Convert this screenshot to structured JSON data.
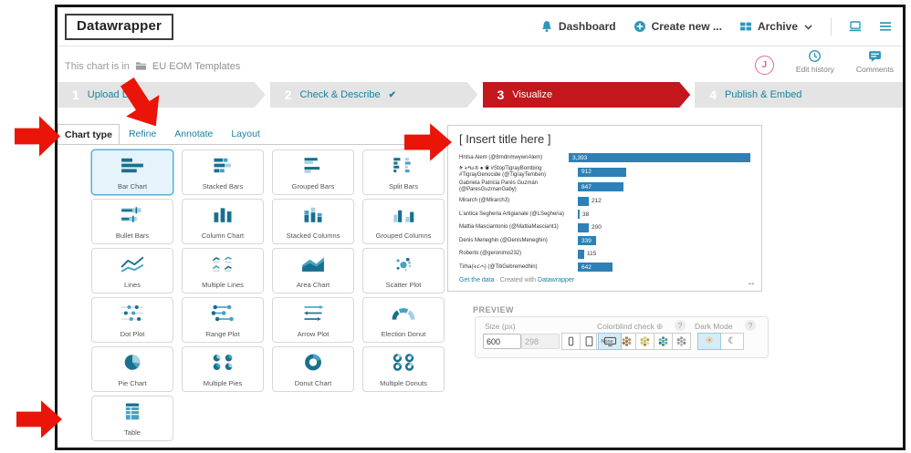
{
  "topbar": {
    "logo": "Datawrapper",
    "nav": [
      {
        "label": "Dashboard",
        "icon": "bell-icon"
      },
      {
        "label": "Create new ...",
        "icon": "plus-circle-icon"
      },
      {
        "label": "Archive",
        "icon": "archive-grid-icon"
      }
    ]
  },
  "context": {
    "prefix": "This chart is in",
    "folder": "EU EOM Templates",
    "avatar_initial": "J",
    "actions": [
      {
        "label": "Edit history",
        "icon": "clock-icon"
      },
      {
        "label": "Comments",
        "icon": "comment-icon"
      }
    ]
  },
  "steps": [
    {
      "number": "1",
      "label": "Upload Data",
      "active": false,
      "check": false
    },
    {
      "number": "2",
      "label": "Check & Describe",
      "active": false,
      "check": true
    },
    {
      "number": "3",
      "label": "Visualize",
      "active": true,
      "check": false
    },
    {
      "number": "4",
      "label": "Publish & Embed",
      "active": false,
      "check": false
    }
  ],
  "tabs": [
    {
      "label": "Chart type",
      "slug": "chart-type",
      "active": true
    },
    {
      "label": "Refine",
      "slug": "refine",
      "active": false
    },
    {
      "label": "Annotate",
      "slug": "annotate",
      "active": false
    },
    {
      "label": "Layout",
      "slug": "layout",
      "active": false
    }
  ],
  "chart_types": [
    {
      "label": "Bar Chart",
      "icon": "bar-chart",
      "selected": true
    },
    {
      "label": "Stacked Bars",
      "icon": "stacked-bars",
      "selected": false
    },
    {
      "label": "Grouped Bars",
      "icon": "grouped-bars",
      "selected": false
    },
    {
      "label": "Split Bars",
      "icon": "split-bars",
      "selected": false
    },
    {
      "label": "Bullet Bars",
      "icon": "bullet-bars",
      "selected": false
    },
    {
      "label": "Column Chart",
      "icon": "column-chart",
      "selected": false
    },
    {
      "label": "Stacked Columns",
      "icon": "stacked-columns",
      "selected": false
    },
    {
      "label": "Grouped Columns",
      "icon": "grouped-columns",
      "selected": false
    },
    {
      "label": "Lines",
      "icon": "lines",
      "selected": false
    },
    {
      "label": "Multiple Lines",
      "icon": "multiple-lines",
      "selected": false
    },
    {
      "label": "Area Chart",
      "icon": "area-chart",
      "selected": false
    },
    {
      "label": "Scatter Plot",
      "icon": "scatter-plot",
      "selected": false
    },
    {
      "label": "Dot Plot",
      "icon": "dot-plot",
      "selected": false
    },
    {
      "label": "Range Plot",
      "icon": "range-plot",
      "selected": false
    },
    {
      "label": "Arrow Plot",
      "icon": "arrow-plot",
      "selected": false
    },
    {
      "label": "Election Donut",
      "icon": "election-donut",
      "selected": false
    },
    {
      "label": "Pie Chart",
      "icon": "pie-chart",
      "selected": false
    },
    {
      "label": "Multiple Pies",
      "icon": "multiple-pies",
      "selected": false
    },
    {
      "label": "Donut Chart",
      "icon": "donut-chart",
      "selected": false
    },
    {
      "label": "Multiple Donuts",
      "icon": "multiple-donuts",
      "selected": false
    },
    {
      "label": "Table",
      "icon": "table",
      "selected": false
    }
  ],
  "chart_data": {
    "type": "bar",
    "title": "[ Insert title here ]",
    "categories": [
      "Hntsa Alem (@8mdnmwywnAlem)",
      "ቅ ትግራይ ● ◉ #StopTigrayBombing #TigrayGenocide (@TigrayTemben)",
      "Gabriela Patricia Parés Guzmán (@ParesGuzmanGaby)",
      "Mirarch (@Mirarch3)",
      "L'antica Segheria Artigianale (@LSegheria)",
      "Mattia Masciantonio (@MattiaMasciant1)",
      "Denis Meneghin (@DenisMeneghin)",
      "Roberto (@geronimo232)",
      "Tirha(ትርሓ) (@TitiGebremedhin)"
    ],
    "values": [
      3393,
      912,
      847,
      212,
      38,
      200,
      339,
      115,
      642
    ],
    "value_labels": [
      "3,393",
      "912",
      "847",
      "212",
      "38",
      "200",
      "339",
      "115",
      "642"
    ],
    "value_inside_bar": [
      true,
      true,
      true,
      false,
      false,
      false,
      true,
      false,
      true
    ],
    "xlim": [
      0,
      3393
    ],
    "bar_color": "#2e80b6",
    "footer": {
      "link1": "Get the data",
      "separator": " · ",
      "text": "Created with ",
      "link2": "Datawrapper"
    }
  },
  "preview": {
    "title": "PREVIEW",
    "size_label": "Size (px)",
    "width_value": "600",
    "height_value": "298",
    "colorblind_label": "Colorblind check",
    "colorblind_none": "None",
    "darkmode_label": "Dark Mode"
  },
  "colors": {
    "accent": "#1d81a2",
    "active_step": "#c4161d",
    "selected_card": "#56b0d9",
    "annotation_arrow": "#ea1508"
  },
  "icons": {
    "check": "✔",
    "resize": "↔",
    "sun": "☀",
    "moon": "☾",
    "info": "⊕",
    "question": "?"
  }
}
